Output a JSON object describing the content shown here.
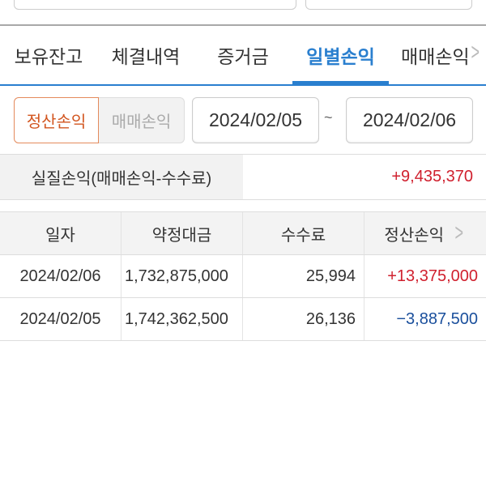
{
  "tabs": [
    {
      "label": "보유잔고"
    },
    {
      "label": "체결내역"
    },
    {
      "label": "증거금"
    },
    {
      "label": "일별손익",
      "active": true
    },
    {
      "label": "매매손익"
    }
  ],
  "filter": {
    "segments": [
      {
        "label": "정산손익",
        "selected": true
      },
      {
        "label": "매매손익",
        "selected": false
      }
    ],
    "start_date": "2024/02/05",
    "separator": "~",
    "end_date": "2024/02/06"
  },
  "summary": {
    "label": "실질손익(매매손익-수수료)",
    "value": "+9,435,370"
  },
  "table": {
    "headers": [
      "일자",
      "약정대금",
      "수수료",
      "정산손익"
    ],
    "rows": [
      [
        "2024/02/06",
        "1,732,875,000",
        "25,994",
        "+13,375,000"
      ],
      [
        "2024/02/05",
        "1,742,362,500",
        "26,136",
        "−3,887,500"
      ]
    ]
  },
  "colors": {
    "accent": "#2a7fcf",
    "selected": "#d2551f",
    "positive": "#d0202e",
    "negative": "#1a4f9c"
  }
}
